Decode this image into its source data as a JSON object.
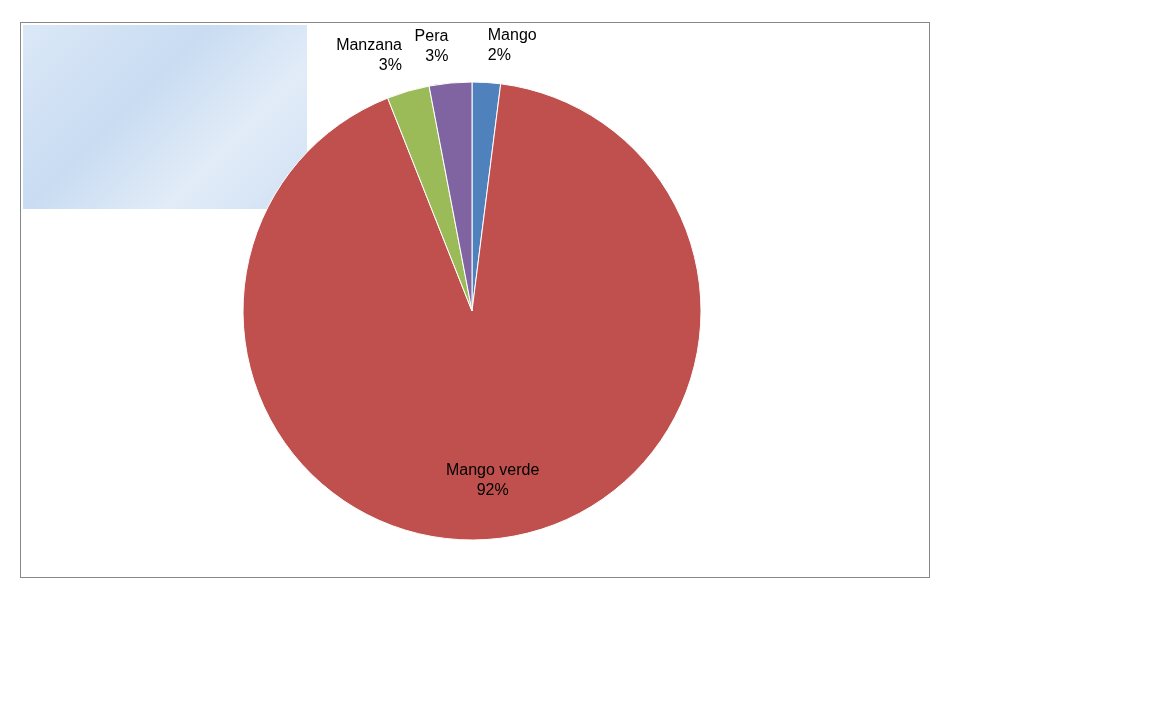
{
  "chart_data": {
    "type": "pie",
    "categories": [
      "Mango",
      "Mango verde",
      "Manzana",
      "Pera"
    ],
    "values": [
      2,
      92,
      3,
      3
    ],
    "colors": [
      "#4f81bd",
      "#c0504d",
      "#9bbb59",
      "#8064a2"
    ],
    "value_labels": [
      "2%",
      "92%",
      "3%",
      "3%"
    ],
    "legend": false
  }
}
